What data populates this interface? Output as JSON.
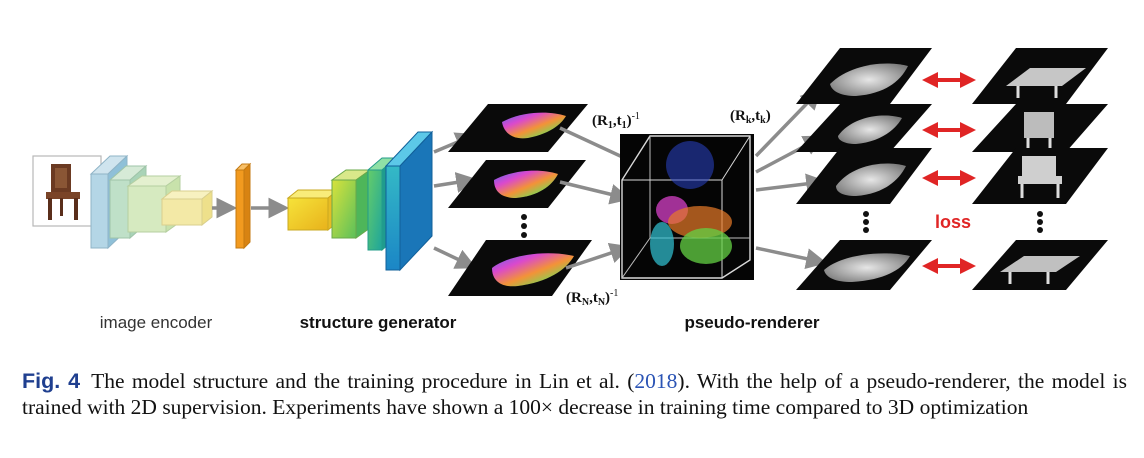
{
  "figure": {
    "stage_labels": {
      "image_encoder": "image encoder",
      "structure_generator": "structure generator",
      "pseudo_renderer": "pseudo-renderer"
    },
    "loss_label": "loss",
    "pose_labels": {
      "first_R": "(R",
      "first_sub1": "1",
      "first_mid": ",t",
      "first_sub2": "1",
      "first_close": ")",
      "first_sup": "-1",
      "last_R": "(R",
      "last_sub1": "N",
      "last_mid": ",t",
      "last_sub2": "N",
      "last_close": ")",
      "last_sup": "-1",
      "k_R": "(R",
      "k_sub1": "k",
      "k_mid": ",t",
      "k_sub2": "k",
      "k_close": ")"
    },
    "colors": {
      "encoder_block": "#a9cfe0",
      "bottleneck": "#f29a1f",
      "loss_arrow": "#e02525",
      "loss_text": "#e02525",
      "flow_arrow": "#8c8c8c"
    }
  },
  "caption": {
    "label": "Fig. 4",
    "text_before": "The model structure and the training procedure in Lin et al. (",
    "citation_year": "2018",
    "text_after": "). With the help of a pseudo-renderer, the model is trained with 2D supervision. Experiments have shown a 100× decrease in training time compared to 3D optimization"
  }
}
